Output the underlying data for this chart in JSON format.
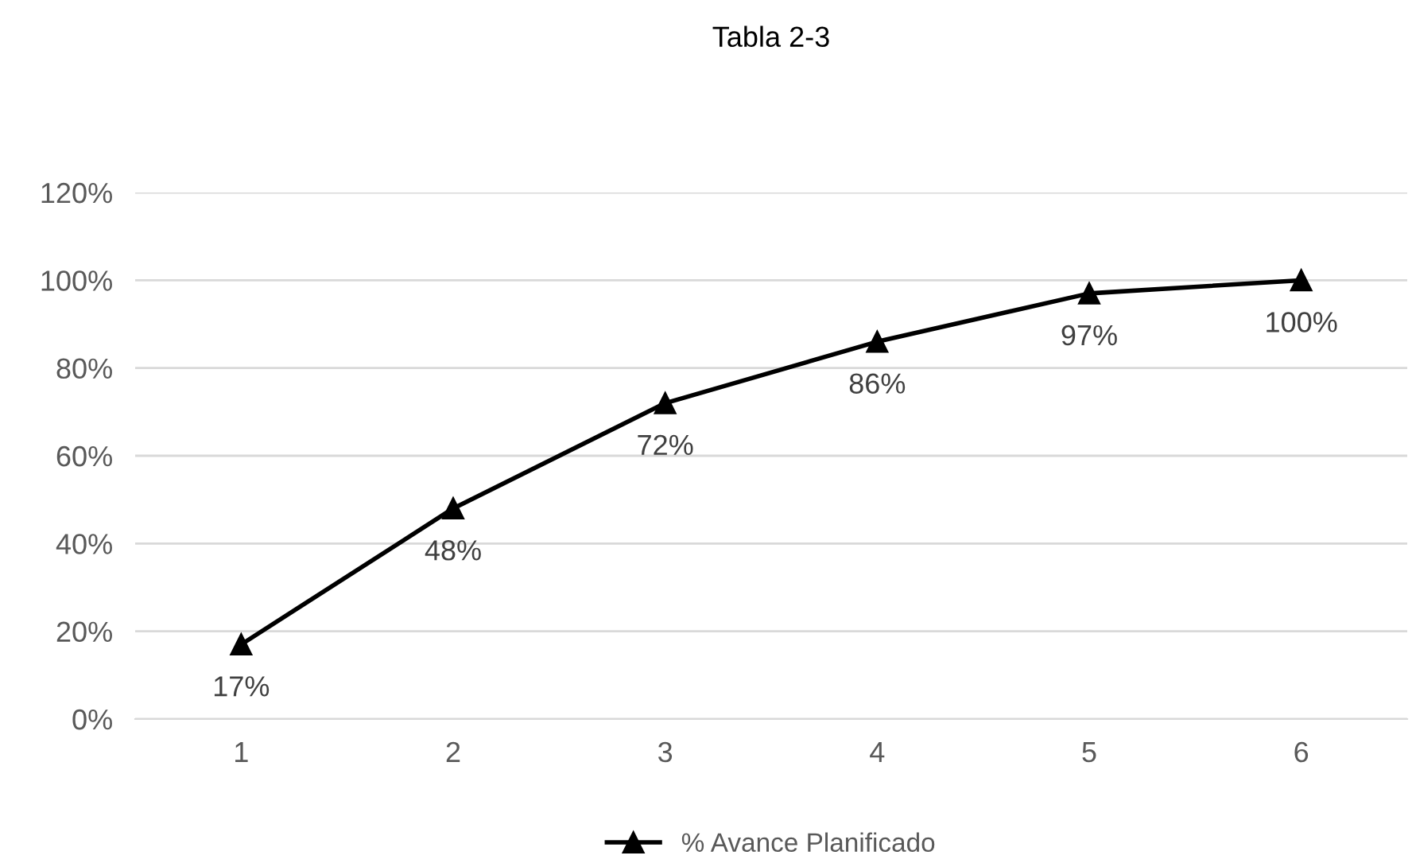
{
  "chart_data": {
    "type": "line",
    "title": "Tabla 2-3",
    "categories": [
      "1",
      "2",
      "3",
      "4",
      "5",
      "6"
    ],
    "series": [
      {
        "name": "% Avance Planificado",
        "color": "#000000",
        "values": [
          17,
          48,
          72,
          86,
          97,
          100
        ],
        "value_labels": [
          "17%",
          "48%",
          "72%",
          "86%",
          "97%",
          "100%"
        ]
      }
    ],
    "ylim": [
      0,
      120
    ],
    "yticks": [
      {
        "value": 0,
        "label": "0%"
      },
      {
        "value": 20,
        "label": "20%"
      },
      {
        "value": 40,
        "label": "40%"
      },
      {
        "value": 60,
        "label": "60%"
      },
      {
        "value": 80,
        "label": "80%"
      },
      {
        "value": 100,
        "label": "100%"
      },
      {
        "value": 120,
        "label": "120%"
      }
    ],
    "grid": "y",
    "legend": "bottom",
    "marker": "triangle",
    "line_style": "solid"
  }
}
